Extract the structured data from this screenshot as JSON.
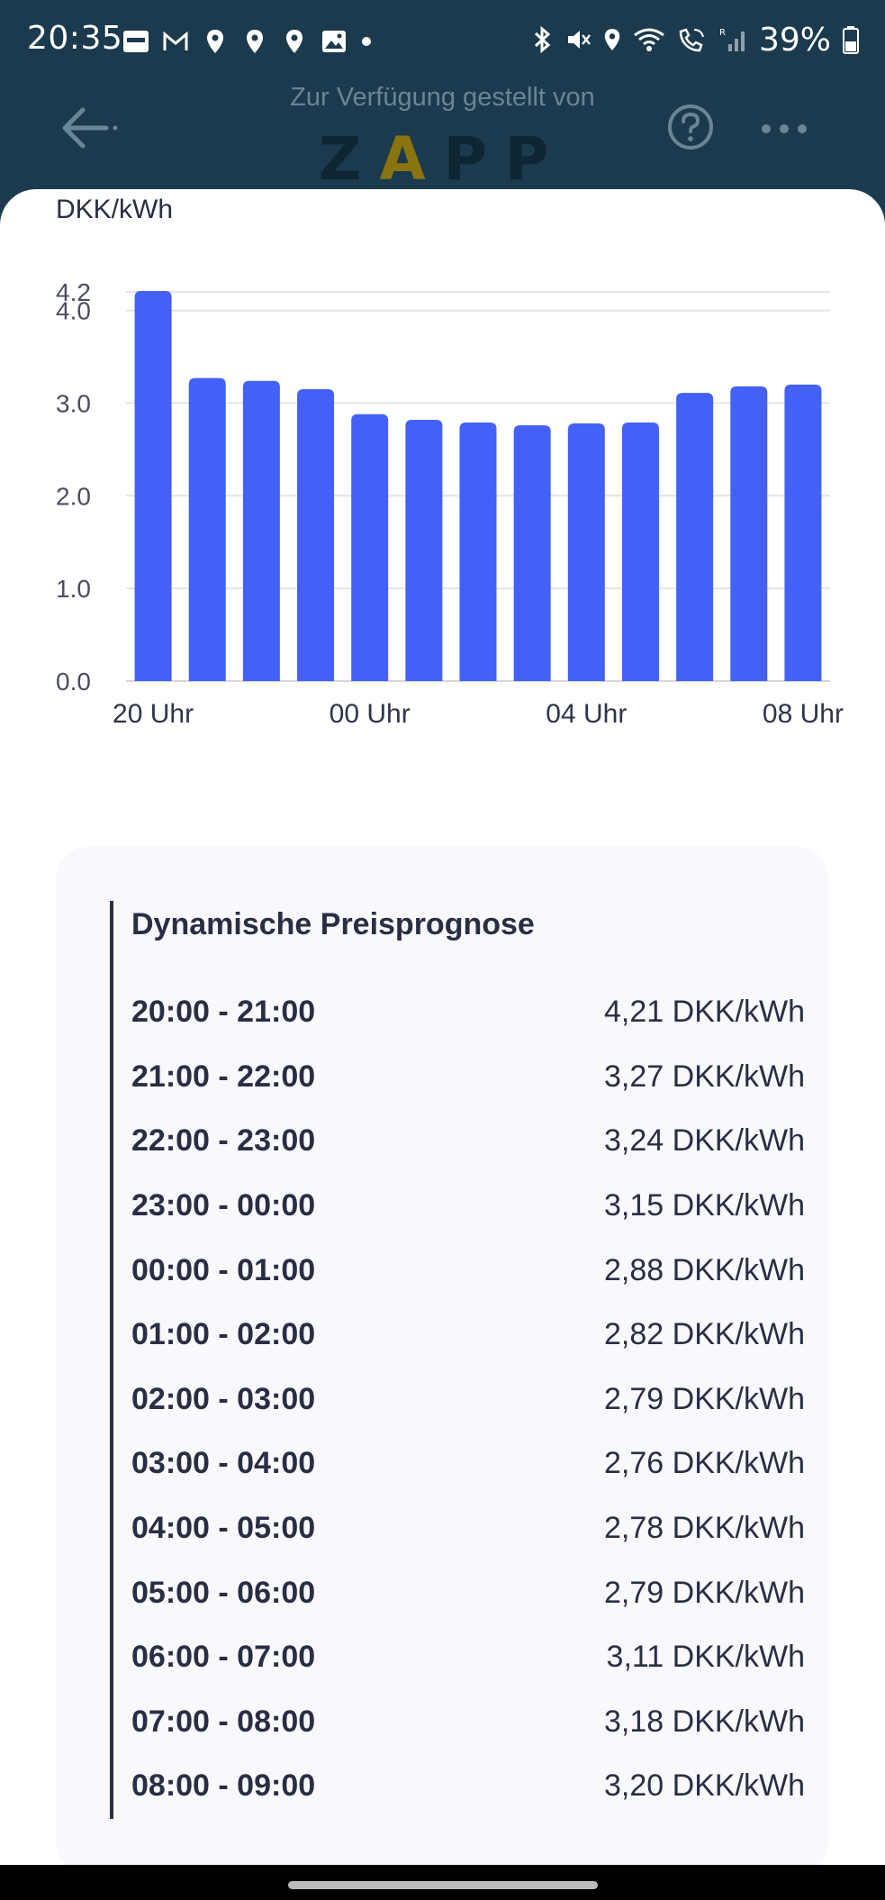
{
  "status": {
    "time": "20:35",
    "battery_text": "39%"
  },
  "header": {
    "provided_by": "Zur Verfügung gestellt von",
    "logo_parts": [
      "Z",
      "A",
      "PP"
    ]
  },
  "chart_data": {
    "type": "bar",
    "ylabel": "DKK/kWh",
    "ylim": [
      0,
      4.2
    ],
    "yticks": [
      "0.0",
      "1.0",
      "2.0",
      "3.0",
      "4.0",
      "4.2"
    ],
    "ytick_values": [
      0,
      1,
      2,
      3,
      4,
      4.2
    ],
    "xtick_labels": [
      "20 Uhr",
      "00 Uhr",
      "04 Uhr",
      "08 Uhr"
    ],
    "xtick_indices": [
      0,
      4,
      8,
      12
    ],
    "categories": [
      "20:00",
      "21:00",
      "22:00",
      "23:00",
      "00:00",
      "01:00",
      "02:00",
      "03:00",
      "04:00",
      "05:00",
      "06:00",
      "07:00",
      "08:00"
    ],
    "values": [
      4.21,
      3.27,
      3.24,
      3.15,
      2.88,
      2.82,
      2.79,
      2.76,
      2.78,
      2.79,
      3.11,
      3.18,
      3.2
    ],
    "bar_color": "#4361f7",
    "grid": true
  },
  "prices": {
    "title": "Dynamische Preisprognose",
    "rows": [
      {
        "time": "20:00 - 21:00",
        "price": "4,21 DKK/kWh"
      },
      {
        "time": "21:00 - 22:00",
        "price": "3,27 DKK/kWh"
      },
      {
        "time": "22:00 - 23:00",
        "price": "3,24 DKK/kWh"
      },
      {
        "time": "23:00 - 00:00",
        "price": "3,15 DKK/kWh"
      },
      {
        "time": "00:00 - 01:00",
        "price": "2,88 DKK/kWh"
      },
      {
        "time": "01:00 - 02:00",
        "price": "2,82 DKK/kWh"
      },
      {
        "time": "02:00 - 03:00",
        "price": "2,79 DKK/kWh"
      },
      {
        "time": "03:00 - 04:00",
        "price": "2,76 DKK/kWh"
      },
      {
        "time": "04:00 - 05:00",
        "price": "2,78 DKK/kWh"
      },
      {
        "time": "05:00 - 06:00",
        "price": "2,79 DKK/kWh"
      },
      {
        "time": "06:00 - 07:00",
        "price": "3,11 DKK/kWh"
      },
      {
        "time": "07:00 - 08:00",
        "price": "3,18 DKK/kWh"
      },
      {
        "time": "08:00 - 09:00",
        "price": "3,20 DKK/kWh"
      }
    ]
  },
  "icons": {
    "back": "arrow-left-icon",
    "help": "help-circle-icon",
    "more": "more-horizontal-icon"
  },
  "colors": {
    "header_bg": "#1b3a4e",
    "bar": "#4361f7",
    "text_dark": "#2a2e44",
    "card_bg": "#f8f8fd"
  }
}
